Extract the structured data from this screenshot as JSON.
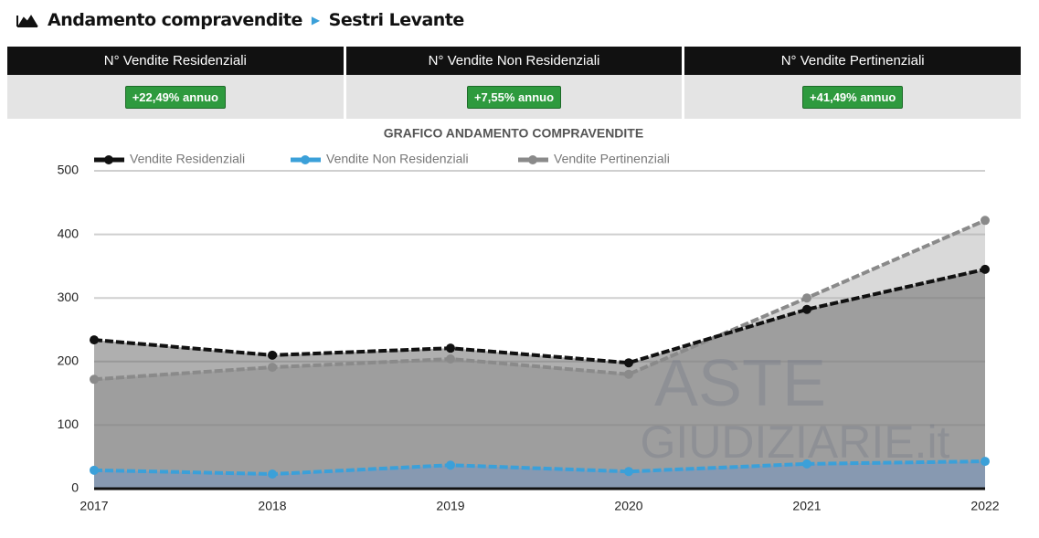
{
  "header": {
    "title": "Andamento compravendite",
    "location": "Sestri Levante"
  },
  "stats": [
    {
      "label": "N° Vendite Residenziali",
      "value": "+22,49% annuo"
    },
    {
      "label": "N° Vendite Non Residenziali",
      "value": "+7,55% annuo"
    },
    {
      "label": "N° Vendite Pertinenziali",
      "value": "+41,49% annuo"
    }
  ],
  "watermark": [
    "ASTE",
    "GIUDIZIARIE.it"
  ],
  "chart_data": {
    "type": "line",
    "title": "GRAFICO ANDAMENTO COMPRAVENDITE",
    "categories": [
      "2017",
      "2018",
      "2019",
      "2020",
      "2021",
      "2022"
    ],
    "series": [
      {
        "name": "Vendite Residenziali",
        "color": "#111111",
        "values": [
          234,
          210,
          221,
          198,
          282,
          345
        ]
      },
      {
        "name": "Vendite Non Residenziali",
        "color": "#3ba0d9",
        "values": [
          29,
          23,
          37,
          27,
          39,
          43
        ]
      },
      {
        "name": "Vendite Pertinenziali",
        "color": "#8a8a8a",
        "values": [
          172,
          191,
          204,
          180,
          300,
          422
        ]
      }
    ],
    "ylim": [
      0,
      500
    ],
    "yticks": [
      0,
      100,
      200,
      300,
      400,
      500
    ],
    "grid": true
  }
}
